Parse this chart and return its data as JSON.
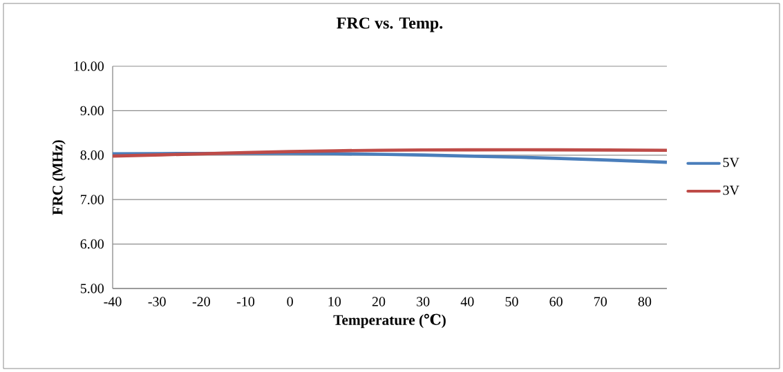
{
  "chart_data": {
    "type": "line",
    "title": "FRC vs. Temp.",
    "xlabel": "Temperature (℃)",
    "ylabel": "FRC (MHz)",
    "x": [
      -40,
      -20,
      0,
      20,
      40,
      60,
      85
    ],
    "series": [
      {
        "name": "5V",
        "color": "#4a7ebb",
        "values": [
          8.03,
          8.04,
          8.04,
          8.02,
          7.98,
          7.93,
          7.84
        ]
      },
      {
        "name": "3V",
        "color": "#be4b48",
        "values": [
          7.98,
          8.03,
          8.08,
          8.11,
          8.12,
          8.12,
          8.11
        ]
      }
    ],
    "xlim": [
      -40,
      85
    ],
    "xticks": [
      -40,
      -30,
      -20,
      -10,
      0,
      10,
      20,
      30,
      40,
      50,
      60,
      70,
      80
    ],
    "ylim": [
      5,
      10
    ],
    "yticks": [
      {
        "value": 5,
        "label": "5.00"
      },
      {
        "value": 6,
        "label": "6.00"
      },
      {
        "value": 7,
        "label": "7.00"
      },
      {
        "value": 8,
        "label": "8.00"
      },
      {
        "value": 9,
        "label": "9.00"
      },
      {
        "value": 10,
        "label": "10.00"
      }
    ],
    "grid": "y",
    "legend": "right",
    "marker": "none",
    "line_style": "solid"
  }
}
